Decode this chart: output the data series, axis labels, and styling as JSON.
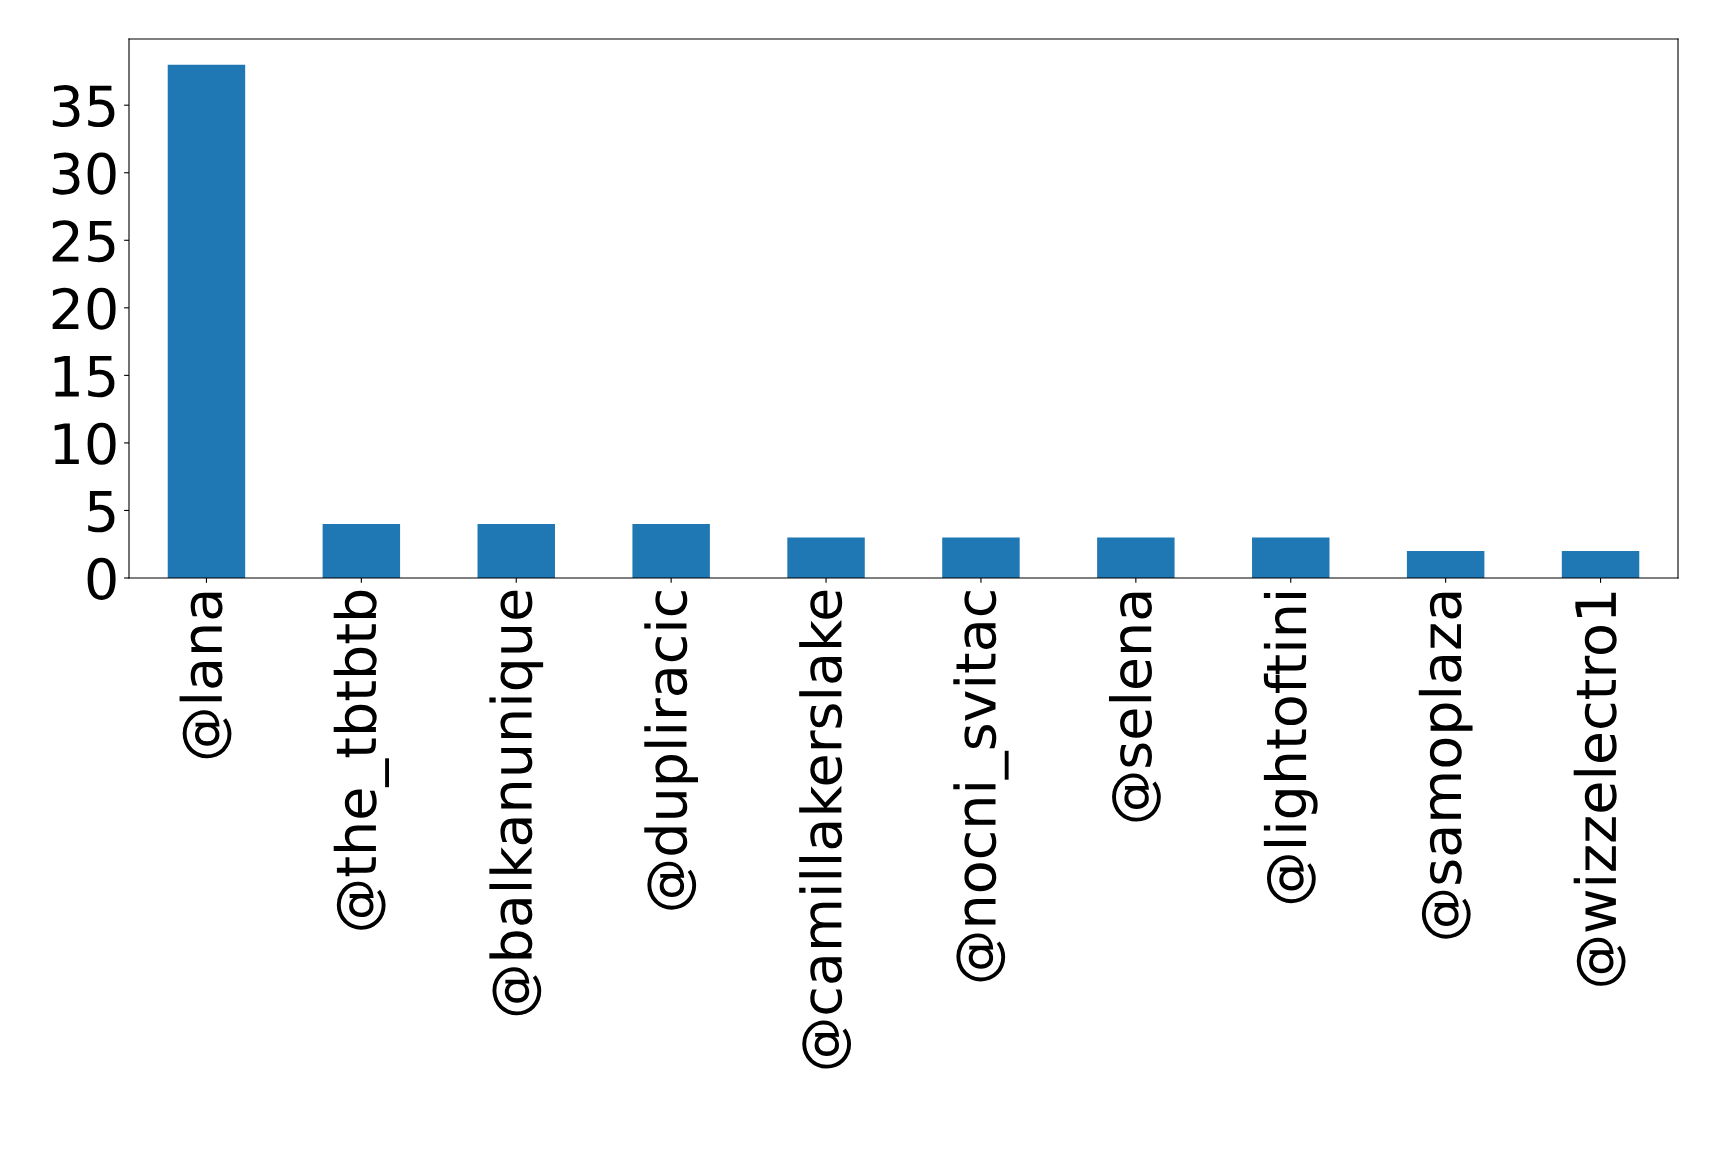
{
  "chart_data": {
    "type": "bar",
    "categories": [
      "@lana",
      "@the_tbtbtb",
      "@balkanunique",
      "@dupliracic",
      "@camillakerslake",
      "@nocni_svitac",
      "@selena",
      "@lightoftini",
      "@samoplaza",
      "@wizzelectro1"
    ],
    "values": [
      38,
      4,
      4,
      4,
      3,
      3,
      3,
      3,
      2,
      2
    ],
    "color": "#1f77b4",
    "ylim": [
      0,
      39.9
    ],
    "yticks": [
      0,
      5,
      10,
      15,
      20,
      25,
      30,
      35
    ],
    "grid": false,
    "legend": false
  }
}
